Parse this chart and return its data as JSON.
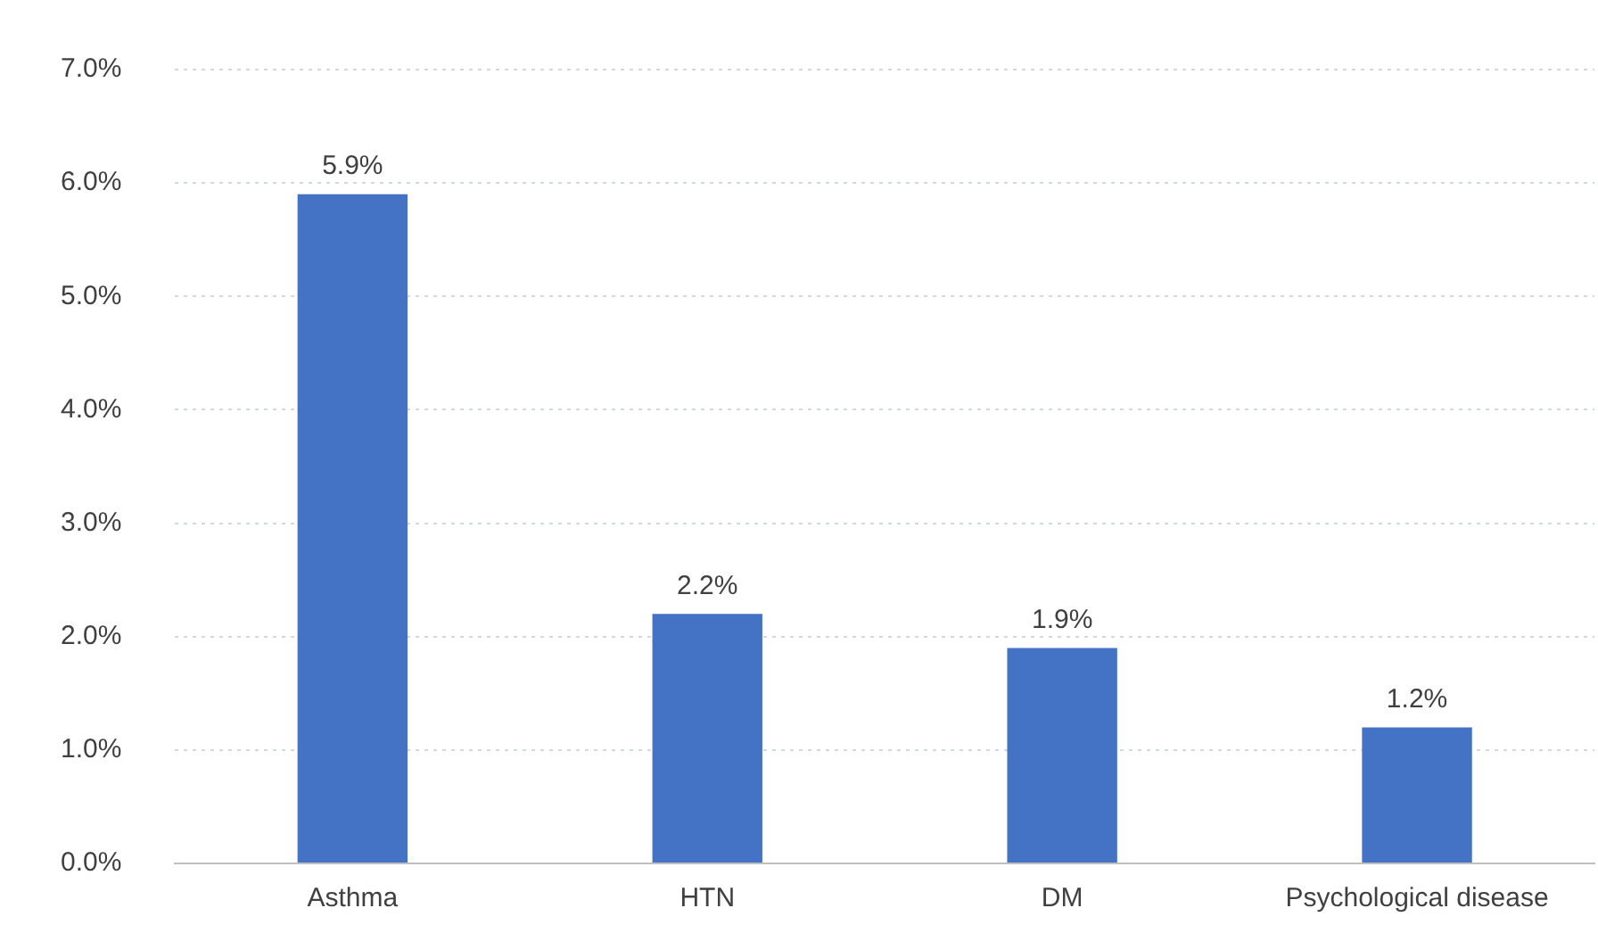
{
  "chart_data": {
    "type": "bar",
    "categories": [
      "Asthma",
      "HTN",
      "DM",
      "Psychological disease"
    ],
    "values": [
      5.9,
      2.2,
      1.9,
      1.2
    ],
    "value_labels": [
      "5.9%",
      "2.2%",
      "1.9%",
      "1.2%"
    ],
    "color": "#4472c4",
    "ylim": [
      0,
      7
    ],
    "yticks": [
      {
        "value": 0,
        "label": "0.0%"
      },
      {
        "value": 1,
        "label": "1.0%"
      },
      {
        "value": 2,
        "label": "2.0%"
      },
      {
        "value": 3,
        "label": "3.0%"
      },
      {
        "value": 4,
        "label": "4.0%"
      },
      {
        "value": 5,
        "label": "5.0%"
      },
      {
        "value": 6,
        "label": "6.0%"
      },
      {
        "value": 7,
        "label": "7.0%"
      }
    ],
    "grid": "y",
    "legend": false
  }
}
